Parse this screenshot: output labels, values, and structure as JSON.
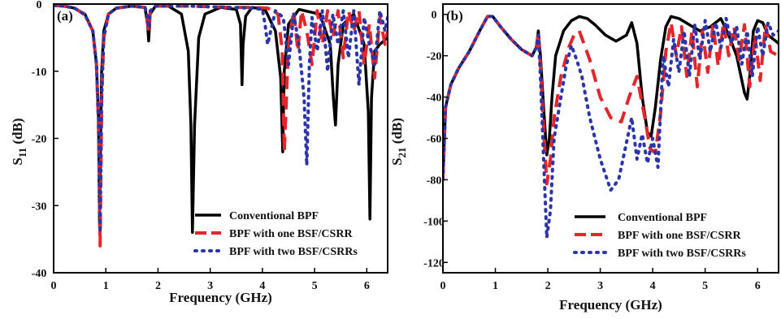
{
  "chart_data": [
    {
      "type": "line",
      "panel_label": "(a)",
      "xlabel": "Frequency (GHz)",
      "ylabel_main": "S",
      "ylabel_sub": "11",
      "ylabel_unit": " (dB)",
      "xlim": [
        0,
        6.4
      ],
      "ylim": [
        -40,
        0
      ],
      "xticks": [
        0,
        1,
        2,
        3,
        4,
        5,
        6
      ],
      "yticks": [
        0,
        -10,
        -20,
        -30,
        -40
      ],
      "legend_position": "bottom-right",
      "series": [
        {
          "name": "Conventional BPF",
          "color": "#000000",
          "style": "solid",
          "x": [
            0,
            0.2,
            0.4,
            0.6,
            0.75,
            0.82,
            0.86,
            0.88,
            0.9,
            0.92,
            0.96,
            1.05,
            1.2,
            1.5,
            1.75,
            1.8,
            1.82,
            1.85,
            1.95,
            2.2,
            2.45,
            2.58,
            2.63,
            2.66,
            2.7,
            2.78,
            2.9,
            3.2,
            3.5,
            3.58,
            3.61,
            3.63,
            3.68,
            3.8,
            4.05,
            4.25,
            4.35,
            4.39,
            4.42,
            4.5,
            4.7,
            5.1,
            5.3,
            5.36,
            5.4,
            5.45,
            5.55,
            5.75,
            5.95,
            6.03,
            6.06,
            6.09,
            6.15,
            6.25,
            6.4
          ],
          "y": [
            -0.2,
            -0.3,
            -0.6,
            -1.5,
            -4,
            -9,
            -17,
            -33,
            -20,
            -10,
            -4,
            -1.5,
            -0.6,
            -0.3,
            -0.5,
            -3,
            -5.5,
            -1.5,
            -0.3,
            -0.3,
            -1.5,
            -7,
            -18,
            -34,
            -18,
            -5,
            -1.5,
            -0.5,
            -0.8,
            -3,
            -12,
            -6,
            -1.8,
            -0.5,
            -0.8,
            -4,
            -11,
            -22,
            -10,
            -3,
            -0.8,
            -1.5,
            -6,
            -14,
            -18,
            -9,
            -3,
            -1.5,
            -6,
            -16,
            -32,
            -14,
            -7,
            -6,
            -5
          ]
        },
        {
          "name": "BPF with one BSF/CSRR",
          "color": "#e3262b",
          "style": "dash",
          "x": [
            0,
            0.2,
            0.4,
            0.6,
            0.75,
            0.82,
            0.86,
            0.89,
            0.92,
            0.96,
            1.05,
            1.2,
            1.5,
            1.75,
            1.8,
            1.82,
            1.85,
            1.95,
            2.2,
            2.6,
            3.0,
            3.4,
            3.8,
            4.1,
            4.3,
            4.38,
            4.42,
            4.5,
            4.6,
            4.68,
            4.75,
            4.85,
            4.95,
            5.05,
            5.15,
            5.25,
            5.35,
            5.45,
            5.55,
            5.65,
            5.75,
            5.85,
            5.95,
            6.05,
            6.15,
            6.25,
            6.35,
            6.4
          ],
          "y": [
            -0.2,
            -0.3,
            -0.6,
            -1.6,
            -4,
            -9,
            -18,
            -36,
            -14,
            -5,
            -1.5,
            -0.6,
            -0.3,
            -0.5,
            -2.5,
            -4,
            -1.2,
            -0.3,
            -0.3,
            -0.3,
            -0.4,
            -0.5,
            -0.5,
            -0.6,
            -1.5,
            -7,
            -22,
            -6,
            -1,
            -7,
            -1,
            -4,
            -9,
            -1,
            -6,
            -1,
            -5,
            -1,
            -8,
            -1,
            -4,
            -1,
            -9,
            -3,
            -11,
            -2,
            -6,
            -4
          ]
        },
        {
          "name": "BPF with two BSF/CSRRs",
          "color": "#2b35a8",
          "style": "dot",
          "x": [
            0,
            0.2,
            0.4,
            0.6,
            0.75,
            0.82,
            0.86,
            0.89,
            0.92,
            0.96,
            1.05,
            1.2,
            1.5,
            1.75,
            1.8,
            1.82,
            1.85,
            1.95,
            2.2,
            2.6,
            3.0,
            3.4,
            3.8,
            4.0,
            4.05,
            4.1,
            4.25,
            4.4,
            4.5,
            4.6,
            4.7,
            4.8,
            4.85,
            4.9,
            4.95,
            5.05,
            5.15,
            5.25,
            5.35,
            5.45,
            5.55,
            5.65,
            5.75,
            5.85,
            5.95,
            6.05,
            6.15,
            6.25,
            6.35,
            6.4
          ],
          "y": [
            -0.2,
            -0.3,
            -0.6,
            -1.6,
            -4,
            -9,
            -17,
            -34,
            -14,
            -5,
            -1.5,
            -0.6,
            -0.3,
            -0.5,
            -2,
            -3.5,
            -1,
            -0.3,
            -0.3,
            -0.3,
            -0.4,
            -0.5,
            -0.6,
            -0.8,
            -3,
            -6,
            -1,
            -2,
            -9,
            -1.5,
            -6,
            -14,
            -24,
            -9,
            -2,
            -7,
            -1,
            -10,
            -1.5,
            -6,
            -1,
            -8,
            -1,
            -12,
            -2,
            -6,
            -9,
            -1,
            -4,
            -2
          ]
        }
      ]
    },
    {
      "type": "line",
      "panel_label": "(b)",
      "xlabel": "Frequency (GHz)",
      "ylabel_main": "S",
      "ylabel_sub": "21",
      "ylabel_unit": " (dB)",
      "xlim": [
        0,
        6.4
      ],
      "ylim": [
        -125,
        5
      ],
      "xticks": [
        0,
        1,
        2,
        3,
        4,
        5,
        6
      ],
      "yticks": [
        0,
        -20,
        -40,
        -60,
        -80,
        -100,
        -120
      ],
      "legend_position": "bottom-right",
      "series": [
        {
          "name": "Conventional BPF",
          "color": "#000000",
          "style": "solid",
          "x": [
            0,
            0.05,
            0.15,
            0.3,
            0.5,
            0.7,
            0.85,
            0.95,
            1.1,
            1.3,
            1.5,
            1.7,
            1.78,
            1.82,
            1.86,
            1.92,
            1.98,
            2.03,
            2.08,
            2.15,
            2.3,
            2.45,
            2.6,
            2.75,
            2.9,
            3.1,
            3.3,
            3.5,
            3.6,
            3.7,
            3.8,
            3.9,
            3.97,
            4.05,
            4.15,
            4.25,
            4.35,
            4.5,
            4.7,
            4.9,
            5.1,
            5.3,
            5.45,
            5.6,
            5.75,
            5.8,
            5.85,
            5.92,
            6.0,
            6.1,
            6.2,
            6.4
          ],
          "y": [
            -80,
            -45,
            -34,
            -26,
            -18,
            -8,
            -1,
            -1,
            -6,
            -12,
            -17,
            -20,
            -16,
            -8,
            -20,
            -45,
            -68,
            -60,
            -40,
            -20,
            -8,
            -3,
            -1,
            -2,
            -5,
            -10,
            -13,
            -10,
            -4,
            -14,
            -40,
            -57,
            -59,
            -45,
            -22,
            -6,
            -1,
            -2,
            -5,
            -8,
            -6,
            -2,
            -10,
            -20,
            -38,
            -41,
            -30,
            -8,
            -3,
            -4,
            -10,
            -14
          ]
        },
        {
          "name": "BPF with one BSF/CSRR",
          "color": "#e3262b",
          "style": "dash",
          "x": [
            0,
            0.05,
            0.15,
            0.3,
            0.5,
            0.7,
            0.85,
            0.95,
            1.1,
            1.3,
            1.5,
            1.7,
            1.78,
            1.82,
            1.86,
            1.92,
            1.98,
            2.05,
            2.12,
            2.25,
            2.4,
            2.5,
            2.6,
            2.8,
            3.0,
            3.2,
            3.4,
            3.55,
            3.7,
            3.85,
            3.95,
            4.05,
            4.15,
            4.25,
            4.35,
            4.45,
            4.55,
            4.65,
            4.75,
            4.85,
            4.95,
            5.05,
            5.15,
            5.25,
            5.35,
            5.45,
            5.55,
            5.65,
            5.75,
            5.85,
            5.95,
            6.05,
            6.15,
            6.25,
            6.4
          ],
          "y": [
            -80,
            -45,
            -34,
            -26,
            -18,
            -8,
            -1,
            -1,
            -6,
            -12,
            -17,
            -20,
            -16,
            -9,
            -25,
            -55,
            -82,
            -70,
            -50,
            -30,
            -16,
            -10,
            -8,
            -22,
            -40,
            -50,
            -52,
            -40,
            -30,
            -50,
            -65,
            -67,
            -48,
            -18,
            -4,
            -20,
            -6,
            -30,
            -8,
            -35,
            -8,
            -28,
            -5,
            -25,
            -4,
            -20,
            -6,
            -22,
            -5,
            -35,
            -10,
            -32,
            -5,
            -18,
            -20
          ]
        },
        {
          "name": "BPF with two BSF/CSRRs",
          "color": "#2b35a8",
          "style": "dot",
          "x": [
            0,
            0.05,
            0.15,
            0.3,
            0.5,
            0.7,
            0.85,
            0.95,
            1.1,
            1.3,
            1.5,
            1.7,
            1.78,
            1.82,
            1.86,
            1.92,
            1.98,
            2.05,
            2.12,
            2.25,
            2.35,
            2.45,
            2.55,
            2.65,
            2.8,
            3.0,
            3.2,
            3.35,
            3.5,
            3.6,
            3.7,
            3.8,
            3.9,
            4.0,
            4.1,
            4.2,
            4.3,
            4.4,
            4.5,
            4.6,
            4.7,
            4.8,
            4.9,
            5.0,
            5.1,
            5.2,
            5.3,
            5.4,
            5.5,
            5.6,
            5.7,
            5.8,
            5.9,
            6.0,
            6.1,
            6.2,
            6.3,
            6.4
          ],
          "y": [
            -80,
            -45,
            -34,
            -26,
            -18,
            -8,
            -1,
            -1,
            -6,
            -12,
            -17,
            -20,
            -16,
            -10,
            -30,
            -70,
            -108,
            -95,
            -60,
            -40,
            -25,
            -15,
            -22,
            -30,
            -50,
            -70,
            -85,
            -80,
            -62,
            -50,
            -70,
            -58,
            -72,
            -60,
            -74,
            -20,
            -35,
            -12,
            -28,
            -8,
            -30,
            -5,
            -22,
            -3,
            -18,
            -4,
            -16,
            -2,
            -14,
            -6,
            -24,
            -8,
            -30,
            -6,
            -20,
            -4,
            -10,
            -8
          ]
        }
      ]
    }
  ]
}
